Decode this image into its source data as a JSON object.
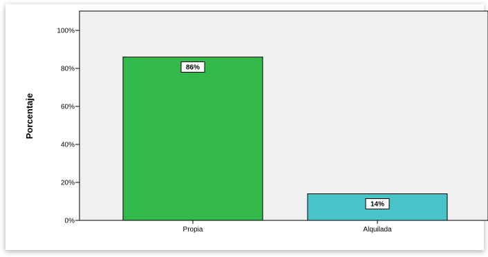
{
  "chart_data": {
    "type": "bar",
    "title": "",
    "xlabel": "",
    "ylabel": "Porcentaje",
    "categories": [
      "Propia",
      "Alquilada"
    ],
    "values": [
      86,
      14
    ],
    "data_labels": [
      "86%",
      "14%"
    ],
    "ylim": [
      0,
      100
    ],
    "yticks": [
      0,
      20,
      40,
      60,
      80,
      100
    ],
    "ytick_labels": [
      "0%",
      "20%",
      "40%",
      "60%",
      "80%",
      "100%"
    ],
    "bar_colors": [
      "#33b84a",
      "#48c4c8"
    ],
    "plot_background": "#f0f0f0",
    "grid": false,
    "legend": "none"
  }
}
